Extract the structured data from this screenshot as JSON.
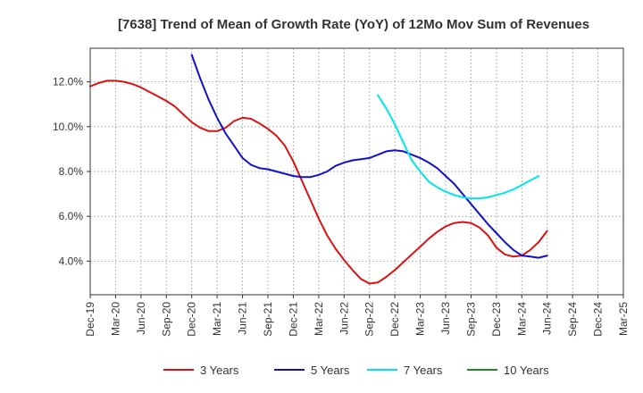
{
  "chart_data": {
    "type": "line",
    "title": "[7638]  Trend of Mean of Growth Rate (YoY) of 12Mo Mov Sum of Revenues",
    "xlabel": "",
    "ylabel": "",
    "x_ticks": [
      "Dec-19",
      "Mar-20",
      "Jun-20",
      "Sep-20",
      "Dec-20",
      "Mar-21",
      "Jun-21",
      "Sep-21",
      "Dec-21",
      "Mar-22",
      "Jun-22",
      "Sep-22",
      "Dec-22",
      "Mar-23",
      "Jun-23",
      "Sep-23",
      "Dec-23",
      "Mar-24",
      "Jun-24",
      "Sep-24",
      "Dec-24",
      "Mar-25"
    ],
    "y_ticks": [
      "4.0%",
      "6.0%",
      "8.0%",
      "10.0%",
      "12.0%"
    ],
    "y_tick_values": [
      4,
      6,
      8,
      10,
      12
    ],
    "ylim": [
      2.5,
      13.5
    ],
    "x_range_months": [
      0,
      63
    ],
    "grid": true,
    "legend_position": "bottom",
    "series": [
      {
        "name": "3 Years",
        "color": "#dd1111",
        "points": [
          [
            0,
            11.8
          ],
          [
            1,
            11.95
          ],
          [
            2,
            12.05
          ],
          [
            3,
            12.05
          ],
          [
            4,
            12.0
          ],
          [
            5,
            11.9
          ],
          [
            6,
            11.75
          ],
          [
            7,
            11.55
          ],
          [
            8,
            11.35
          ],
          [
            9,
            11.15
          ],
          [
            10,
            10.9
          ],
          [
            11,
            10.55
          ],
          [
            12,
            10.2
          ],
          [
            13,
            9.95
          ],
          [
            14,
            9.8
          ],
          [
            15,
            9.8
          ],
          [
            16,
            9.95
          ],
          [
            17,
            10.25
          ],
          [
            18,
            10.4
          ],
          [
            19,
            10.35
          ],
          [
            20,
            10.15
          ],
          [
            21,
            9.9
          ],
          [
            22,
            9.6
          ],
          [
            23,
            9.15
          ],
          [
            24,
            8.45
          ],
          [
            25,
            7.6
          ],
          [
            26,
            6.75
          ],
          [
            27,
            5.9
          ],
          [
            28,
            5.15
          ],
          [
            29,
            4.55
          ],
          [
            30,
            4.05
          ],
          [
            31,
            3.6
          ],
          [
            32,
            3.2
          ],
          [
            33,
            3.0
          ],
          [
            34,
            3.05
          ],
          [
            35,
            3.3
          ],
          [
            36,
            3.6
          ],
          [
            37,
            3.95
          ],
          [
            38,
            4.3
          ],
          [
            39,
            4.65
          ],
          [
            40,
            5.0
          ],
          [
            41,
            5.3
          ],
          [
            42,
            5.55
          ],
          [
            43,
            5.7
          ],
          [
            44,
            5.75
          ],
          [
            45,
            5.7
          ],
          [
            46,
            5.5
          ],
          [
            47,
            5.15
          ],
          [
            48,
            4.6
          ],
          [
            49,
            4.3
          ],
          [
            50,
            4.2
          ],
          [
            51,
            4.25
          ],
          [
            52,
            4.5
          ],
          [
            53,
            4.85
          ],
          [
            54,
            5.35
          ]
        ]
      },
      {
        "name": "5 Years",
        "color": "#1111cc",
        "points": [
          [
            12,
            13.2
          ],
          [
            13,
            12.15
          ],
          [
            14,
            11.2
          ],
          [
            15,
            10.4
          ],
          [
            16,
            9.7
          ],
          [
            17,
            9.15
          ],
          [
            18,
            8.6
          ],
          [
            19,
            8.3
          ],
          [
            20,
            8.15
          ],
          [
            21,
            8.1
          ],
          [
            22,
            8.0
          ],
          [
            23,
            7.9
          ],
          [
            24,
            7.8
          ],
          [
            25,
            7.75
          ],
          [
            26,
            7.75
          ],
          [
            27,
            7.85
          ],
          [
            28,
            8.0
          ],
          [
            29,
            8.25
          ],
          [
            30,
            8.4
          ],
          [
            31,
            8.5
          ],
          [
            32,
            8.55
          ],
          [
            33,
            8.6
          ],
          [
            34,
            8.75
          ],
          [
            35,
            8.9
          ],
          [
            36,
            8.95
          ],
          [
            37,
            8.9
          ],
          [
            38,
            8.75
          ],
          [
            39,
            8.6
          ],
          [
            40,
            8.4
          ],
          [
            41,
            8.15
          ],
          [
            42,
            7.8
          ],
          [
            43,
            7.45
          ],
          [
            44,
            7.0
          ],
          [
            45,
            6.55
          ],
          [
            46,
            6.1
          ],
          [
            47,
            5.65
          ],
          [
            48,
            5.25
          ],
          [
            49,
            4.85
          ],
          [
            50,
            4.5
          ],
          [
            51,
            4.25
          ],
          [
            52,
            4.2
          ],
          [
            53,
            4.15
          ],
          [
            54,
            4.25
          ]
        ]
      },
      {
        "name": "7 Years",
        "color": "#00e5ee",
        "points": [
          [
            34,
            11.4
          ],
          [
            35,
            10.8
          ],
          [
            36,
            10.1
          ],
          [
            37,
            9.3
          ],
          [
            38,
            8.5
          ],
          [
            39,
            8.0
          ],
          [
            40,
            7.55
          ],
          [
            41,
            7.3
          ],
          [
            42,
            7.1
          ],
          [
            43,
            6.95
          ],
          [
            44,
            6.85
          ],
          [
            45,
            6.8
          ],
          [
            46,
            6.8
          ],
          [
            47,
            6.85
          ],
          [
            48,
            6.95
          ],
          [
            49,
            7.05
          ],
          [
            50,
            7.2
          ],
          [
            51,
            7.4
          ],
          [
            52,
            7.6
          ],
          [
            53,
            7.8
          ]
        ]
      },
      {
        "name": "10 Years",
        "color": "#228822",
        "points": []
      }
    ]
  }
}
